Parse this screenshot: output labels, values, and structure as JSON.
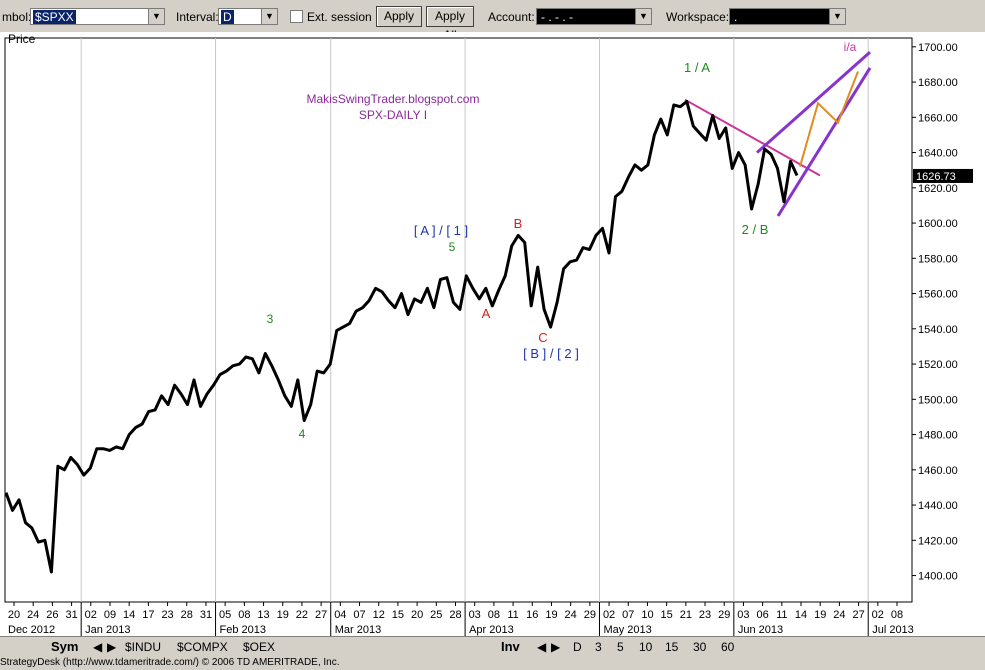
{
  "toolbar": {
    "symbol_label": "mbol:",
    "symbol_value": "$SPXX",
    "interval_label": "Interval:",
    "interval_value": "D",
    "ext_session_label": "Ext. session",
    "apply_label": "Apply",
    "apply_all_label": "Apply All",
    "account_label": "Account:",
    "account_value": "-  .  -  .  -",
    "workspace_label": "Workspace:",
    "workspace_value": "."
  },
  "chart_data": {
    "type": "line",
    "title": "Price",
    "watermark": [
      "MakisSwingTrader.blogspot.com",
      "SPX-DAILY I"
    ],
    "ylim": [
      1385,
      1705
    ],
    "yticks": [
      1400,
      1420,
      1440,
      1460,
      1480,
      1500,
      1520,
      1540,
      1560,
      1580,
      1600,
      1620,
      1640,
      1660,
      1680,
      1700
    ],
    "ytick_labels": [
      "1400.00",
      "1420.00",
      "1440.00",
      "1460.00",
      "1480.00",
      "1500.00",
      "1520.00",
      "1540.00",
      "1560.00",
      "1580.00",
      "1600.00",
      "1620.00",
      "1640.00",
      "1660.00",
      "1680.00",
      "1700.00"
    ],
    "last_value_label": "1626.73",
    "grid": true,
    "day_ticks": [
      "20",
      "24",
      "26",
      "31",
      "02",
      "09",
      "14",
      "17",
      "23",
      "28",
      "31",
      "05",
      "08",
      "13",
      "19",
      "22",
      "27",
      "04",
      "07",
      "12",
      "15",
      "20",
      "25",
      "28",
      "03",
      "08",
      "11",
      "16",
      "19",
      "24",
      "29",
      "02",
      "07",
      "10",
      "15",
      "21",
      "23",
      "29",
      "03",
      "06",
      "11",
      "14",
      "19",
      "24",
      "27",
      "02",
      "08"
    ],
    "month_labels": [
      "Dec 2012",
      "Jan 2013",
      "Feb 2013",
      "Mar 2013",
      "Apr 2013",
      "May 2013",
      "Jun 2013",
      "Jul 2013"
    ],
    "series": [
      {
        "values": [
          1447,
          1437,
          1443,
          1430,
          1427,
          1419,
          1420,
          1402,
          1462,
          1460,
          1467,
          1463,
          1457,
          1461,
          1472,
          1472,
          1471,
          1473,
          1472,
          1480,
          1484,
          1486,
          1493,
          1494,
          1502,
          1497,
          1508,
          1503,
          1497,
          1511,
          1496,
          1503,
          1508,
          1514,
          1516,
          1519,
          1520,
          1524,
          1523,
          1515,
          1526,
          1519,
          1511,
          1502,
          1496,
          1511,
          1488,
          1497,
          1516,
          1515,
          1520,
          1539,
          1541,
          1543,
          1550,
          1552,
          1556,
          1563,
          1561,
          1556,
          1552,
          1560,
          1548,
          1557,
          1555,
          1563,
          1552,
          1568,
          1569,
          1555,
          1551,
          1570,
          1563,
          1557,
          1563,
          1553,
          1562,
          1570,
          1587,
          1593,
          1589,
          1553,
          1575,
          1551,
          1541,
          1555,
          1574,
          1578,
          1579,
          1586,
          1585,
          1593,
          1597,
          1583,
          1615,
          1618,
          1626,
          1633,
          1630,
          1633,
          1650,
          1659,
          1650,
          1667,
          1666,
          1669,
          1655,
          1651,
          1647,
          1661,
          1648,
          1654,
          1631,
          1640,
          1633,
          1608,
          1622,
          1642,
          1639,
          1631,
          1612,
          1635,
          1627
        ]
      },
      {
        "name": "channel",
        "values": []
      }
    ],
    "labels_green": [
      "1 / A",
      "2 / B",
      "3",
      "4",
      "5"
    ],
    "labels_blue": [
      "[ A ] / [ 1 ]",
      "[ B ] / [ 2 ]"
    ],
    "labels_red": [
      "B",
      "C",
      "A"
    ],
    "labels_magenta": [
      "i/a"
    ]
  },
  "bottom": {
    "sym_label": "Sym",
    "symbol_tabs": [
      "$INDU",
      "$COMPX",
      "$OEX"
    ],
    "inv_label": "Inv",
    "interval_tabs": [
      "D",
      "3",
      "5",
      "10",
      "15",
      "30",
      "60"
    ]
  },
  "status": {
    "text": "StrategyDesk (http://www.tdameritrade.com/) © 2006 TD AMERITRADE, Inc."
  },
  "colors": {
    "price_line": "#000000",
    "trend_magenta": "#cc3399",
    "channel_purple": "#8833cc",
    "projection_orange": "#e08a20",
    "label_green": "#228822",
    "label_blue": "#2233aa",
    "label_red": "#cc2222",
    "label_magenta": "#cc33aa"
  }
}
